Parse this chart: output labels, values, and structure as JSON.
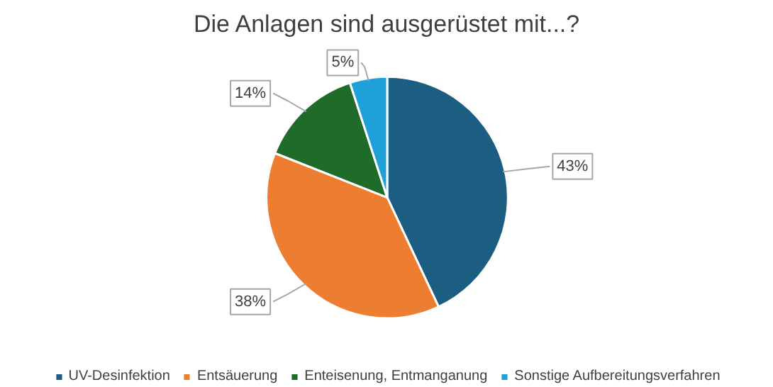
{
  "chart_data": {
    "type": "pie",
    "title": "Die Anlagen sind ausgerüstet mit...?",
    "categories": [
      "UV-Desinfektion",
      "Entsäuerung",
      "Enteisenung, Entmanganung",
      "Sonstige Aufbereitungsverfahren"
    ],
    "values": [
      43,
      38,
      14,
      5
    ],
    "colors": [
      "#1b5e82",
      "#ed7d31",
      "#1e6b2a",
      "#1ea0d8"
    ],
    "value_labels": [
      "43%",
      "38%",
      "14%",
      "5%"
    ],
    "legend": "bottom"
  }
}
